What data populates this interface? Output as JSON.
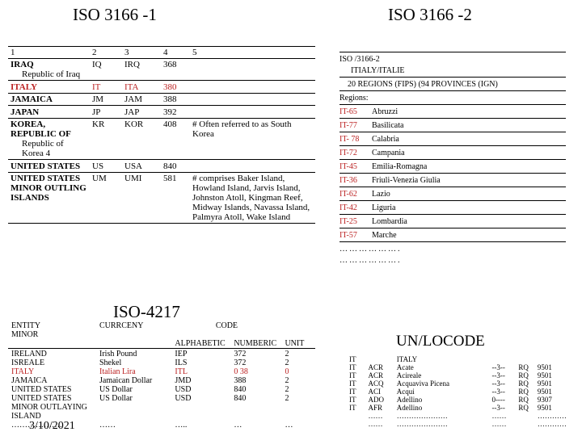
{
  "titles": {
    "iso3166_1": "ISO 3166 -1",
    "iso3166_2": "ISO 3166 -2",
    "iso4217": "ISO-4217",
    "unlocode": "UN/LOCODE"
  },
  "date": "3/10/2021",
  "tbl1_headers": [
    "1",
    "2",
    "3",
    "4",
    "5"
  ],
  "tbl1_rows": [
    {
      "c1": "IRAQ",
      "sub": "Republic of Iraq",
      "c2": "IQ",
      "c3": "IRQ",
      "c4": "368",
      "c5": "",
      "hi": false
    },
    {
      "c1": "ITALY",
      "sub": "",
      "c2": "IT",
      "c3": "ITA",
      "c4": "380",
      "c5": "",
      "hi": true
    },
    {
      "c1": "JAMAICA",
      "sub": "",
      "c2": "JM",
      "c3": "JAM",
      "c4": "388",
      "c5": "",
      "hi": false
    },
    {
      "c1": "JAPAN",
      "sub": "",
      "c2": "JP",
      "c3": "JAP",
      "c4": "392",
      "c5": "",
      "hi": false
    },
    {
      "c1": "KOREA, REPUBLIC OF",
      "sub": "Republic of Korea 4",
      "c2": "KR",
      "c3": "KOR",
      "c4": "408",
      "c5": "# Often referred to as South Korea",
      "hi": false
    },
    {
      "c1": "UNITED STATES",
      "sub": "",
      "c2": "US",
      "c3": "USA",
      "c4": "840",
      "c5": "",
      "hi": false
    },
    {
      "c1": "UNITED STATES MINOR OUTLING ISLANDS",
      "sub": "",
      "c2": "UM",
      "c3": "UMI",
      "c4": "581",
      "c5": "# comprises Baker Island, Howland Island, Jarvis Island, Johnston Atoll, Kingman Reef, Midway Islands, Navassa Island, Palmyra Atoll, Wake Island",
      "hi": false
    }
  ],
  "tbl2_h": {
    "entity": "ENTITY",
    "minor": "MINOR",
    "currency": "CURRCENY",
    "code": "CODE",
    "alpha": "ALPHABETIC",
    "num": "NUMBERIC",
    "unit": "UNIT"
  },
  "tbl2_rows": [
    {
      "e": "IRELAND",
      "c": "Irish Pound",
      "a": "IEP",
      "n": "372",
      "u": "2",
      "hi": false
    },
    {
      "e": "ISREALE",
      "c": "Shekel",
      "a": "ILS",
      "n": "372",
      "u": "2",
      "hi": false
    },
    {
      "e": "ITALY",
      "c": "Italian Lira",
      "a": "ITL",
      "n": "0 38",
      "u": "0",
      "hi": true
    },
    {
      "e": "JAMAICA",
      "c": "Jamaican Dollar",
      "a": "JMD",
      "n": "388",
      "u": "2",
      "hi": false
    },
    {
      "e": "UNITED STATES",
      "c": "US Dollar",
      "a": "USD",
      "n": "840",
      "u": "2",
      "hi": false
    },
    {
      "e": "UNITED STATES MINOR OUTLAYING ISLAND",
      "c": "US Dollar",
      "a": "USD",
      "n": "840",
      "u": "2",
      "hi": false
    }
  ],
  "tbl2_dots": {
    "e": "……………….",
    "c": "……",
    "a": "…..",
    "n": "…",
    "u": "…"
  },
  "r": {
    "l1": "ISO /3166-2",
    "l2": "ITIALY/ITALIE",
    "l3": "20  REGIONS (FIPS) (94 PROVINCES (IGN)",
    "l4": "Regions:",
    "rows": [
      {
        "code": "IT-65",
        "name": "Abruzzi"
      },
      {
        "code": "IT-77",
        "name": "Basilicata"
      },
      {
        "code": "IT- 78",
        "name": "Calabria"
      },
      {
        "code": "IT-72",
        "name": "Campania"
      },
      {
        "code": "IT-45",
        "name": "Emilia-Romagna"
      },
      {
        "code": "IT-36",
        "name": "Friuli-Venezia Giulia"
      },
      {
        "code": "IT-62",
        "name": "Lazio"
      },
      {
        "code": "IT-42",
        "name": "Liguria"
      },
      {
        "code": "IT-25",
        "name": "Lombardia"
      },
      {
        "code": "IT-57",
        "name": "Marche"
      }
    ],
    "dots": "………………."
  },
  "tbl3": {
    "hdr": {
      "cc": "IT",
      "ccname": "ITALY"
    },
    "rows": [
      {
        "c1": "IT",
        "c2": "ACR",
        "c3": "Acate",
        "c4": "--3--",
        "c5": "RQ",
        "c6": "9501"
      },
      {
        "c1": "IT",
        "c2": "ACR",
        "c3": "Acireale",
        "c4": "--3--",
        "c5": "RQ",
        "c6": "9501"
      },
      {
        "c1": "IT",
        "c2": "ACQ",
        "c3": "Acquaviva Picena",
        "c4": "--3--",
        "c5": "RQ",
        "c6": "9501"
      },
      {
        "c1": "IT",
        "c2": "ACI",
        "c3": "Acqui",
        "c4": "--3--",
        "c5": "RQ",
        "c6": "9501"
      },
      {
        "c1": "IT",
        "c2": "ADO",
        "c3": "Adellino",
        "c4": "0----",
        "c5": "RQ",
        "c6": "9307"
      },
      {
        "c1": "IT",
        "c2": "AFR",
        "c3": "Adellino",
        "c4": "--3--",
        "c5": "RQ",
        "c6": "9501"
      }
    ],
    "dots": {
      "c1": "",
      "c2": "……",
      "c3": "…………………",
      "c4": "……",
      "c5": "",
      "c6": "…………"
    }
  }
}
